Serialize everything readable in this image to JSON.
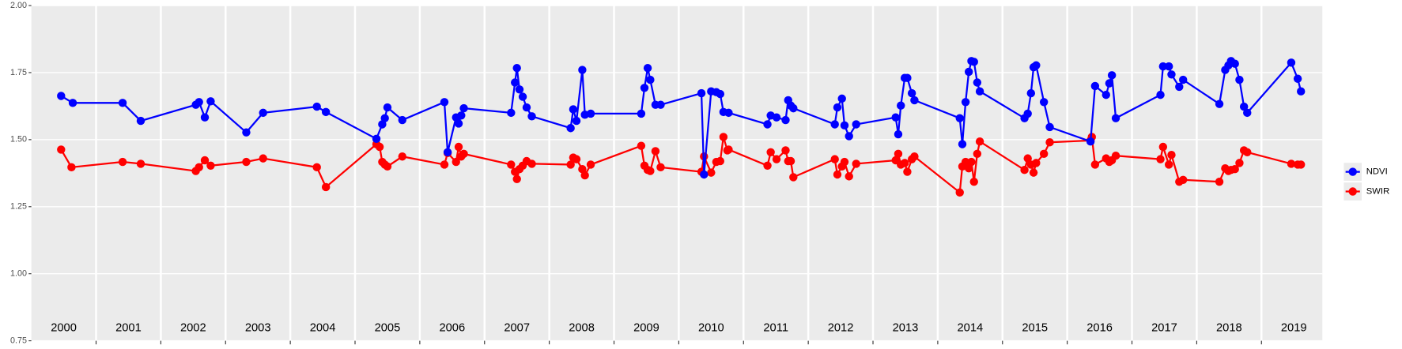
{
  "chart_data": {
    "type": "line",
    "xlim": [
      2000,
      2019.94
    ],
    "xticks": [
      {
        "value": 2000.5,
        "label": "2000"
      },
      {
        "value": 2001.5,
        "label": "2001"
      },
      {
        "value": 2002.5,
        "label": "2002"
      },
      {
        "value": 2003.5,
        "label": "2003"
      },
      {
        "value": 2004.5,
        "label": "2004"
      },
      {
        "value": 2005.5,
        "label": "2005"
      },
      {
        "value": 2006.5,
        "label": "2006"
      },
      {
        "value": 2007.5,
        "label": "2007"
      },
      {
        "value": 2008.5,
        "label": "2008"
      },
      {
        "value": 2009.5,
        "label": "2009"
      },
      {
        "value": 2010.5,
        "label": "2010"
      },
      {
        "value": 2011.5,
        "label": "2011"
      },
      {
        "value": 2012.5,
        "label": "2012"
      },
      {
        "value": 2013.5,
        "label": "2013"
      },
      {
        "value": 2014.5,
        "label": "2014"
      },
      {
        "value": 2015.5,
        "label": "2015"
      },
      {
        "value": 2016.5,
        "label": "2016"
      },
      {
        "value": 2017.5,
        "label": "2017"
      },
      {
        "value": 2018.5,
        "label": "2018"
      },
      {
        "value": 2019.5,
        "label": "2019"
      }
    ],
    "xgrid": [
      2001,
      2002,
      2003,
      2004,
      2005,
      2006,
      2007,
      2008,
      2009,
      2010,
      2011,
      2012,
      2013,
      2014,
      2015,
      2016,
      2017,
      2018,
      2019
    ],
    "ylim": [
      0.75,
      2.0
    ],
    "yticks": [
      0.75,
      {
        "value": 1.0,
        "label": "1.00"
      },
      1.25,
      {
        "value": 1.5,
        "label": "1.50"
      },
      1.75,
      {
        "value": 2.0,
        "label": "2.00"
      }
    ],
    "grid": true,
    "legend": "right",
    "series": [
      {
        "name": "NDVI",
        "color": "#0000ff",
        "x": [
          2000.46,
          2000.64,
          2001.41,
          2001.69,
          2002.54,
          2002.59,
          2002.68,
          2002.77,
          2003.32,
          2003.58,
          2004.41,
          2004.55,
          2005.33,
          2005.42,
          2005.46,
          2005.5,
          2005.73,
          2006.38,
          2006.43,
          2006.56,
          2006.6,
          2006.64,
          2006.68,
          2007.41,
          2007.47,
          2007.5,
          2007.54,
          2007.59,
          2007.65,
          2007.73,
          2008.33,
          2008.37,
          2008.42,
          2008.51,
          2008.55,
          2008.64,
          2009.42,
          2009.47,
          2009.52,
          2009.56,
          2009.64,
          2009.72,
          2010.35,
          2010.39,
          2010.5,
          2010.58,
          2010.64,
          2010.69,
          2010.77,
          2011.37,
          2011.42,
          2011.51,
          2011.65,
          2011.69,
          2011.73,
          2011.77,
          2012.41,
          2012.45,
          2012.52,
          2012.56,
          2012.63,
          2012.74,
          2013.35,
          2013.39,
          2013.43,
          2013.49,
          2013.53,
          2013.6,
          2013.64,
          2014.34,
          2014.38,
          2014.43,
          2014.48,
          2014.52,
          2014.56,
          2014.61,
          2014.65,
          2015.34,
          2015.39,
          2015.44,
          2015.48,
          2015.52,
          2015.64,
          2015.73,
          2016.36,
          2016.43,
          2016.6,
          2016.65,
          2016.69,
          2016.75,
          2017.44,
          2017.48,
          2017.57,
          2017.61,
          2017.73,
          2017.79,
          2018.35,
          2018.44,
          2018.49,
          2018.53,
          2018.59,
          2018.66,
          2018.73,
          2018.78,
          2019.46,
          2019.56,
          2019.61
        ],
        "values": [
          1.663,
          1.637,
          1.637,
          1.57,
          1.63,
          1.64,
          1.583,
          1.643,
          1.527,
          1.6,
          1.623,
          1.603,
          1.503,
          1.557,
          1.58,
          1.62,
          1.573,
          1.64,
          1.453,
          1.583,
          1.56,
          1.59,
          1.617,
          1.6,
          1.713,
          1.767,
          1.687,
          1.66,
          1.62,
          1.587,
          1.543,
          1.613,
          1.57,
          1.76,
          1.593,
          1.597,
          1.597,
          1.693,
          1.767,
          1.723,
          1.63,
          1.63,
          1.673,
          1.37,
          1.68,
          1.677,
          1.67,
          1.603,
          1.6,
          1.557,
          1.59,
          1.583,
          1.573,
          1.647,
          1.627,
          1.617,
          1.557,
          1.62,
          1.653,
          1.553,
          1.513,
          1.557,
          1.583,
          1.52,
          1.627,
          1.73,
          1.73,
          1.673,
          1.647,
          1.58,
          1.483,
          1.64,
          1.753,
          1.793,
          1.79,
          1.713,
          1.68,
          1.58,
          1.597,
          1.673,
          1.77,
          1.777,
          1.64,
          1.547,
          1.493,
          1.7,
          1.667,
          1.71,
          1.74,
          1.58,
          1.667,
          1.773,
          1.773,
          1.743,
          1.697,
          1.723,
          1.633,
          1.76,
          1.777,
          1.793,
          1.783,
          1.723,
          1.623,
          1.6,
          1.787,
          1.727,
          1.68
        ]
      },
      {
        "name": "SWIR",
        "color": "#ff0000",
        "x": [
          2000.46,
          2000.62,
          2001.41,
          2001.69,
          2002.54,
          2002.59,
          2002.68,
          2002.77,
          2003.32,
          2003.58,
          2004.41,
          2004.55,
          2005.33,
          2005.38,
          2005.42,
          2005.46,
          2005.5,
          2005.73,
          2006.38,
          2006.43,
          2006.56,
          2006.6,
          2006.64,
          2006.68,
          2007.41,
          2007.47,
          2007.5,
          2007.54,
          2007.59,
          2007.65,
          2007.73,
          2008.33,
          2008.37,
          2008.42,
          2008.51,
          2008.55,
          2008.64,
          2009.42,
          2009.47,
          2009.52,
          2009.56,
          2009.64,
          2009.72,
          2010.35,
          2010.39,
          2010.5,
          2010.58,
          2010.64,
          2010.69,
          2010.75,
          2010.77,
          2011.37,
          2011.42,
          2011.51,
          2011.65,
          2011.69,
          2011.73,
          2011.77,
          2012.41,
          2012.45,
          2012.52,
          2012.56,
          2012.63,
          2012.74,
          2013.35,
          2013.39,
          2013.43,
          2013.49,
          2013.53,
          2013.6,
          2013.64,
          2014.34,
          2014.38,
          2014.43,
          2014.48,
          2014.52,
          2014.56,
          2014.61,
          2014.65,
          2015.34,
          2015.39,
          2015.44,
          2015.48,
          2015.52,
          2015.64,
          2015.73,
          2016.36,
          2016.38,
          2016.43,
          2016.6,
          2016.65,
          2016.69,
          2016.75,
          2017.44,
          2017.48,
          2017.57,
          2017.61,
          2017.73,
          2017.79,
          2018.35,
          2018.44,
          2018.49,
          2018.53,
          2018.59,
          2018.66,
          2018.73,
          2018.78,
          2019.46,
          2019.56,
          2019.61
        ],
        "values": [
          1.463,
          1.397,
          1.417,
          1.41,
          1.383,
          1.397,
          1.423,
          1.403,
          1.417,
          1.43,
          1.397,
          1.323,
          1.483,
          1.473,
          1.417,
          1.407,
          1.4,
          1.437,
          1.407,
          1.45,
          1.417,
          1.473,
          1.437,
          1.447,
          1.407,
          1.38,
          1.353,
          1.39,
          1.403,
          1.42,
          1.41,
          1.407,
          1.433,
          1.427,
          1.39,
          1.367,
          1.407,
          1.477,
          1.403,
          1.387,
          1.383,
          1.457,
          1.397,
          1.38,
          1.437,
          1.377,
          1.417,
          1.42,
          1.51,
          1.46,
          1.463,
          1.403,
          1.453,
          1.427,
          1.46,
          1.42,
          1.42,
          1.36,
          1.427,
          1.37,
          1.4,
          1.417,
          1.363,
          1.41,
          1.423,
          1.447,
          1.407,
          1.413,
          1.38,
          1.427,
          1.437,
          1.303,
          1.4,
          1.417,
          1.393,
          1.417,
          1.343,
          1.447,
          1.493,
          1.387,
          1.43,
          1.407,
          1.377,
          1.413,
          1.447,
          1.49,
          1.497,
          1.51,
          1.407,
          1.43,
          1.417,
          1.423,
          1.44,
          1.427,
          1.473,
          1.407,
          1.443,
          1.343,
          1.35,
          1.343,
          1.393,
          1.383,
          1.387,
          1.39,
          1.413,
          1.46,
          1.453,
          1.41,
          1.407,
          1.407
        ]
      }
    ]
  }
}
